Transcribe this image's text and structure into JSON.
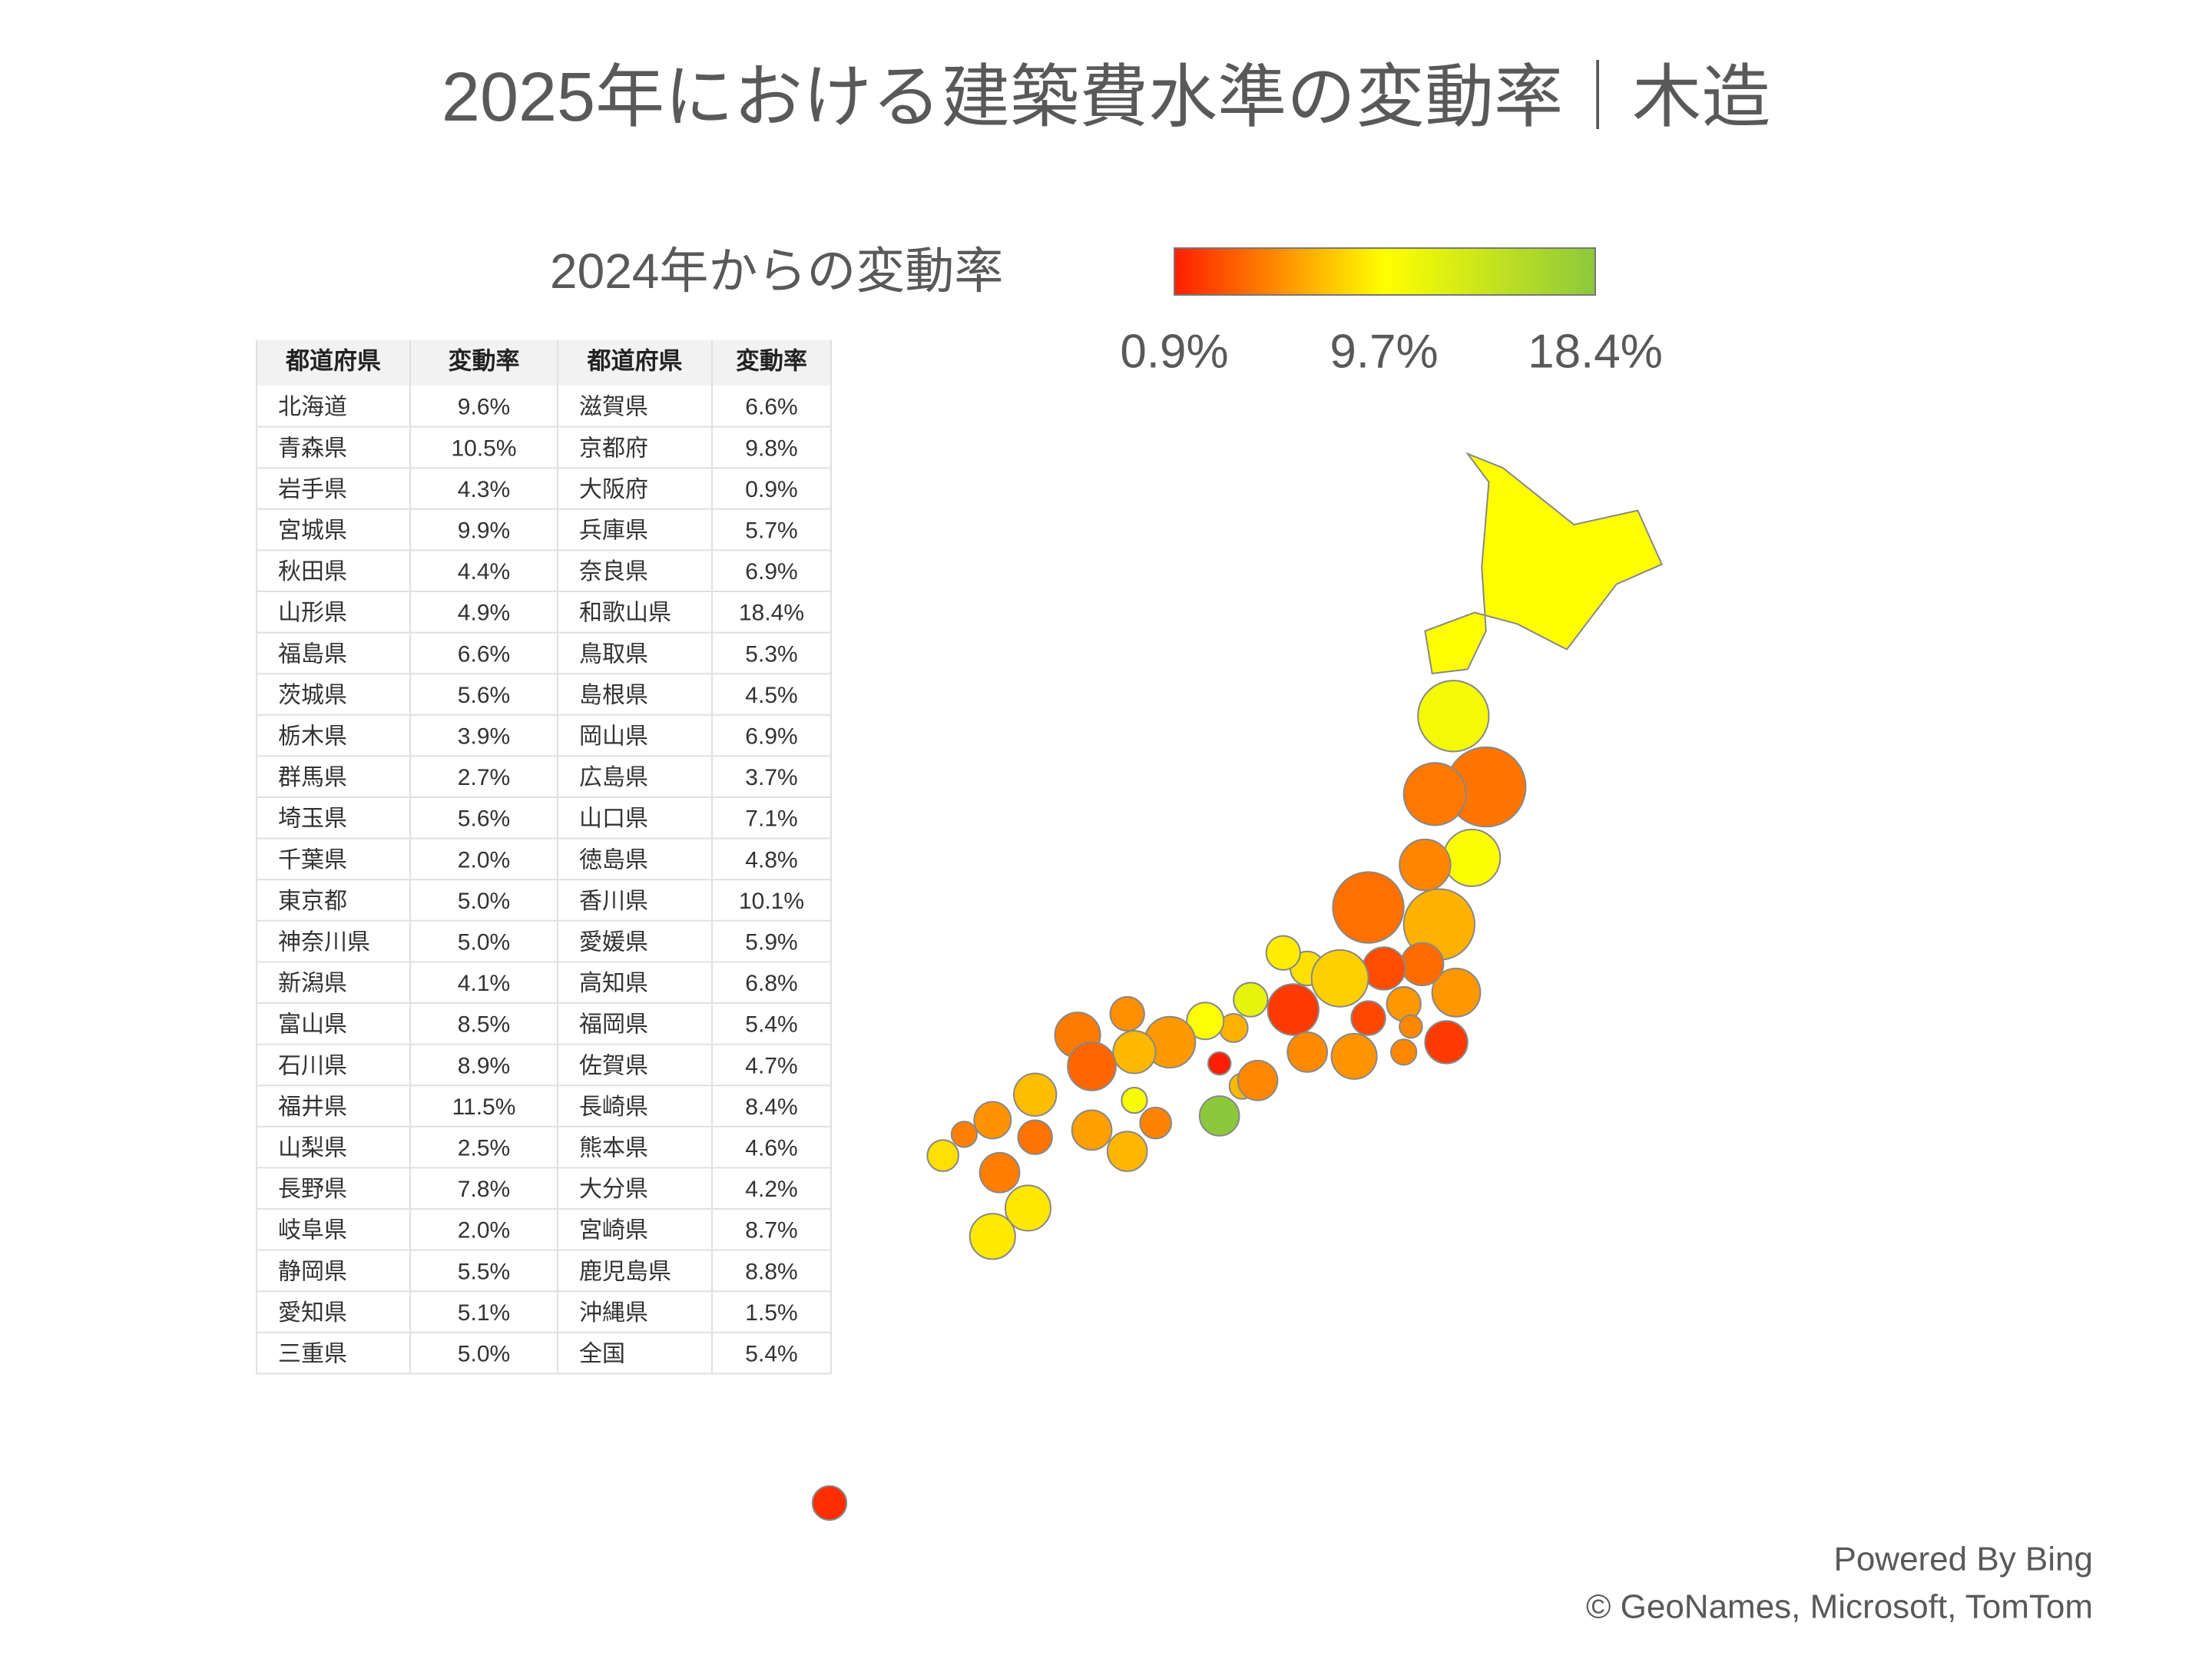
{
  "title": "2025年における建築費水準の変動率｜木造",
  "legend": {
    "title": "2024年からの変動率",
    "labels": [
      "0.9%",
      "9.7%",
      "18.4%"
    ]
  },
  "table": {
    "header": [
      "都道府県",
      "変動率",
      "都道府県",
      "変動率"
    ],
    "rows": [
      [
        "北海道",
        "9.6%",
        "滋賀県",
        "6.6%"
      ],
      [
        "青森県",
        "10.5%",
        "京都府",
        "9.8%"
      ],
      [
        "岩手県",
        "4.3%",
        "大阪府",
        "0.9%"
      ],
      [
        "宮城県",
        "9.9%",
        "兵庫県",
        "5.7%"
      ],
      [
        "秋田県",
        "4.4%",
        "奈良県",
        "6.9%"
      ],
      [
        "山形県",
        "4.9%",
        "和歌山県",
        "18.4%"
      ],
      [
        "福島県",
        "6.6%",
        "鳥取県",
        "5.3%"
      ],
      [
        "茨城県",
        "5.6%",
        "島根県",
        "4.5%"
      ],
      [
        "栃木県",
        "3.9%",
        "岡山県",
        "6.9%"
      ],
      [
        "群馬県",
        "2.7%",
        "広島県",
        "3.7%"
      ],
      [
        "埼玉県",
        "5.6%",
        "山口県",
        "7.1%"
      ],
      [
        "千葉県",
        "2.0%",
        "徳島県",
        "4.8%"
      ],
      [
        "東京都",
        "5.0%",
        "香川県",
        "10.1%"
      ],
      [
        "神奈川県",
        "5.0%",
        "愛媛県",
        "5.9%"
      ],
      [
        "新潟県",
        "4.1%",
        "高知県",
        "6.8%"
      ],
      [
        "富山県",
        "8.5%",
        "福岡県",
        "5.4%"
      ],
      [
        "石川県",
        "8.9%",
        "佐賀県",
        "4.7%"
      ],
      [
        "福井県",
        "11.5%",
        "長崎県",
        "8.4%"
      ],
      [
        "山梨県",
        "2.5%",
        "熊本県",
        "4.6%"
      ],
      [
        "長野県",
        "7.8%",
        "大分県",
        "4.2%"
      ],
      [
        "岐阜県",
        "2.0%",
        "宮崎県",
        "8.7%"
      ],
      [
        "静岡県",
        "5.5%",
        "鹿児島県",
        "8.8%"
      ],
      [
        "愛知県",
        "5.1%",
        "沖縄県",
        "1.5%"
      ],
      [
        "三重県",
        "5.0%",
        "全国",
        "5.4%"
      ]
    ]
  },
  "attribution": [
    "Powered By Bing",
    "© GeoNames, Microsoft, TomTom"
  ]
}
